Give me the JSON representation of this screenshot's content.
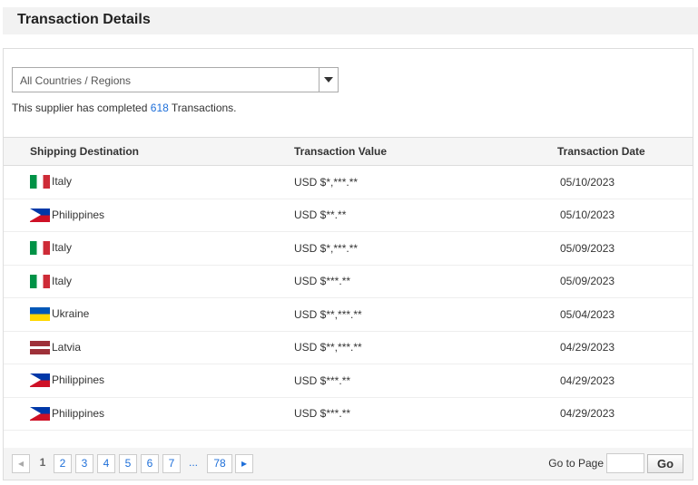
{
  "title": "Transaction Details",
  "filter": {
    "selected": "All Countries / Regions"
  },
  "summary": {
    "prefix": "This supplier has completed",
    "count": "618",
    "suffix": "Transactions."
  },
  "table": {
    "headers": [
      "Shipping Destination",
      "Transaction Value",
      "Transaction Date"
    ],
    "rows": [
      {
        "flag": "it",
        "country": "Italy",
        "value": "USD $*,***.**",
        "date": "05/10/2023"
      },
      {
        "flag": "ph",
        "country": "Philippines",
        "value": "USD $**.**",
        "date": "05/10/2023"
      },
      {
        "flag": "it",
        "country": "Italy",
        "value": "USD $*,***.**",
        "date": "05/09/2023"
      },
      {
        "flag": "it",
        "country": "Italy",
        "value": "USD $***.**",
        "date": "05/09/2023"
      },
      {
        "flag": "ua",
        "country": "Ukraine",
        "value": "USD $**,***.**",
        "date": "05/04/2023"
      },
      {
        "flag": "lv",
        "country": "Latvia",
        "value": "USD $**,***.**",
        "date": "04/29/2023"
      },
      {
        "flag": "ph",
        "country": "Philippines",
        "value": "USD $***.**",
        "date": "04/29/2023"
      },
      {
        "flag": "ph",
        "country": "Philippines",
        "value": "USD $***.**",
        "date": "04/29/2023"
      }
    ]
  },
  "pagination": {
    "current": "1",
    "pages": [
      "2",
      "3",
      "4",
      "5",
      "6",
      "7"
    ],
    "ellipsis": "...",
    "last": "78",
    "goto_label": "Go to Page",
    "goto_value": "",
    "go_label": "Go"
  }
}
